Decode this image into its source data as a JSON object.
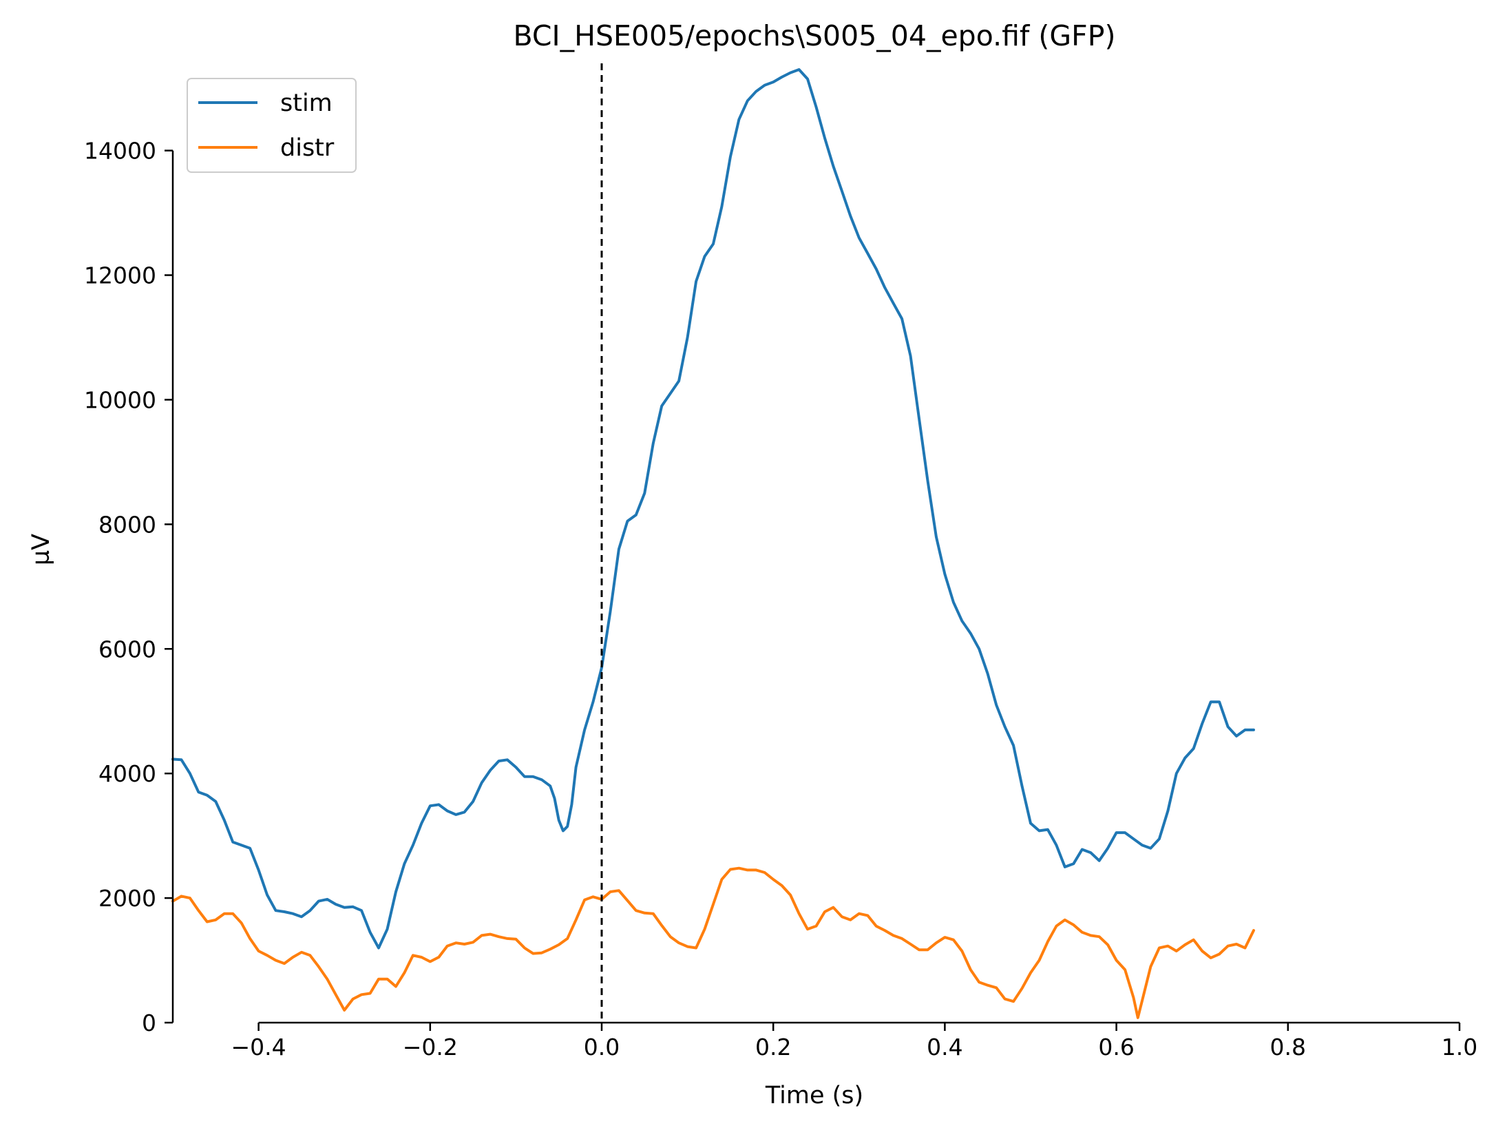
{
  "chart_data": {
    "type": "line",
    "title": "BCI_HSE005/epochs\\S005_04_epo.fif (GFP)",
    "xlabel": "Time (s)",
    "ylabel": "µV",
    "xlim": [
      -0.5,
      1.0
    ],
    "ylim": [
      0,
      15400
    ],
    "x_ticks": [
      -0.4,
      -0.2,
      0.0,
      0.2,
      0.4,
      0.6,
      0.8,
      1.0
    ],
    "x_tick_labels": [
      "−0.4",
      "−0.2",
      "0.0",
      "0.2",
      "0.4",
      "0.6",
      "0.8",
      "1.0"
    ],
    "y_ticks": [
      0,
      2000,
      4000,
      6000,
      8000,
      10000,
      12000,
      14000
    ],
    "y_tick_labels": [
      "0",
      "2000",
      "4000",
      "6000",
      "8000",
      "10000",
      "12000",
      "14000"
    ],
    "grid": false,
    "legend": "top-left",
    "event_marker": {
      "x": 0.0,
      "style": "dashed",
      "color": "#000000"
    },
    "series": [
      {
        "name": "stim",
        "color": "#1f77b4",
        "points": [
          [
            -0.5,
            4230
          ],
          [
            -0.49,
            4220
          ],
          [
            -0.48,
            4000
          ],
          [
            -0.47,
            3700
          ],
          [
            -0.46,
            3650
          ],
          [
            -0.45,
            3550
          ],
          [
            -0.44,
            3250
          ],
          [
            -0.43,
            2900
          ],
          [
            -0.42,
            2850
          ],
          [
            -0.41,
            2800
          ],
          [
            -0.4,
            2450
          ],
          [
            -0.39,
            2050
          ],
          [
            -0.38,
            1800
          ],
          [
            -0.37,
            1780
          ],
          [
            -0.36,
            1750
          ],
          [
            -0.35,
            1700
          ],
          [
            -0.34,
            1800
          ],
          [
            -0.33,
            1950
          ],
          [
            -0.32,
            1980
          ],
          [
            -0.31,
            1900
          ],
          [
            -0.3,
            1850
          ],
          [
            -0.29,
            1860
          ],
          [
            -0.28,
            1800
          ],
          [
            -0.27,
            1450
          ],
          [
            -0.26,
            1200
          ],
          [
            -0.25,
            1500
          ],
          [
            -0.24,
            2100
          ],
          [
            -0.23,
            2550
          ],
          [
            -0.22,
            2850
          ],
          [
            -0.21,
            3200
          ],
          [
            -0.2,
            3480
          ],
          [
            -0.19,
            3500
          ],
          [
            -0.18,
            3400
          ],
          [
            -0.17,
            3340
          ],
          [
            -0.16,
            3380
          ],
          [
            -0.15,
            3550
          ],
          [
            -0.14,
            3850
          ],
          [
            -0.13,
            4050
          ],
          [
            -0.12,
            4200
          ],
          [
            -0.11,
            4220
          ],
          [
            -0.1,
            4100
          ],
          [
            -0.09,
            3950
          ],
          [
            -0.08,
            3950
          ],
          [
            -0.07,
            3900
          ],
          [
            -0.06,
            3800
          ],
          [
            -0.055,
            3600
          ],
          [
            -0.05,
            3250
          ],
          [
            -0.045,
            3080
          ],
          [
            -0.04,
            3150
          ],
          [
            -0.035,
            3500
          ],
          [
            -0.03,
            4100
          ],
          [
            -0.02,
            4700
          ],
          [
            -0.01,
            5150
          ],
          [
            0.0,
            5700
          ],
          [
            0.01,
            6600
          ],
          [
            0.02,
            7600
          ],
          [
            0.03,
            8050
          ],
          [
            0.04,
            8150
          ],
          [
            0.05,
            8500
          ],
          [
            0.06,
            9300
          ],
          [
            0.07,
            9900
          ],
          [
            0.08,
            10100
          ],
          [
            0.09,
            10300
          ],
          [
            0.1,
            11000
          ],
          [
            0.11,
            11900
          ],
          [
            0.12,
            12300
          ],
          [
            0.13,
            12500
          ],
          [
            0.14,
            13100
          ],
          [
            0.15,
            13900
          ],
          [
            0.16,
            14500
          ],
          [
            0.17,
            14800
          ],
          [
            0.18,
            14950
          ],
          [
            0.19,
            15050
          ],
          [
            0.2,
            15100
          ],
          [
            0.21,
            15180
          ],
          [
            0.22,
            15250
          ],
          [
            0.23,
            15300
          ],
          [
            0.24,
            15150
          ],
          [
            0.25,
            14700
          ],
          [
            0.26,
            14200
          ],
          [
            0.27,
            13750
          ],
          [
            0.28,
            13350
          ],
          [
            0.29,
            12950
          ],
          [
            0.3,
            12600
          ],
          [
            0.31,
            12350
          ],
          [
            0.32,
            12100
          ],
          [
            0.33,
            11800
          ],
          [
            0.34,
            11550
          ],
          [
            0.35,
            11300
          ],
          [
            0.36,
            10700
          ],
          [
            0.37,
            9700
          ],
          [
            0.38,
            8700
          ],
          [
            0.39,
            7800
          ],
          [
            0.4,
            7200
          ],
          [
            0.41,
            6750
          ],
          [
            0.42,
            6450
          ],
          [
            0.43,
            6250
          ],
          [
            0.44,
            6000
          ],
          [
            0.45,
            5600
          ],
          [
            0.46,
            5100
          ],
          [
            0.47,
            4750
          ],
          [
            0.48,
            4450
          ],
          [
            0.49,
            3800
          ],
          [
            0.5,
            3200
          ],
          [
            0.51,
            3080
          ],
          [
            0.52,
            3100
          ],
          [
            0.53,
            2850
          ],
          [
            0.54,
            2500
          ],
          [
            0.55,
            2550
          ],
          [
            0.56,
            2780
          ],
          [
            0.57,
            2730
          ],
          [
            0.58,
            2600
          ],
          [
            0.59,
            2800
          ],
          [
            0.6,
            3050
          ],
          [
            0.61,
            3050
          ],
          [
            0.62,
            2950
          ],
          [
            0.63,
            2850
          ],
          [
            0.64,
            2800
          ],
          [
            0.65,
            2950
          ],
          [
            0.66,
            3400
          ],
          [
            0.67,
            4000
          ],
          [
            0.68,
            4250
          ],
          [
            0.69,
            4400
          ],
          [
            0.7,
            4800
          ],
          [
            0.71,
            5150
          ],
          [
            0.72,
            5150
          ],
          [
            0.73,
            4750
          ],
          [
            0.74,
            4600
          ],
          [
            0.75,
            4700
          ],
          [
            0.76,
            4700
          ]
        ]
      },
      {
        "name": "distr",
        "color": "#ff7f0e",
        "points": [
          [
            -0.5,
            1950
          ],
          [
            -0.49,
            2030
          ],
          [
            -0.48,
            2000
          ],
          [
            -0.47,
            1800
          ],
          [
            -0.46,
            1620
          ],
          [
            -0.45,
            1650
          ],
          [
            -0.44,
            1750
          ],
          [
            -0.43,
            1750
          ],
          [
            -0.42,
            1600
          ],
          [
            -0.41,
            1350
          ],
          [
            -0.4,
            1150
          ],
          [
            -0.39,
            1080
          ],
          [
            -0.38,
            1000
          ],
          [
            -0.37,
            950
          ],
          [
            -0.36,
            1050
          ],
          [
            -0.35,
            1130
          ],
          [
            -0.34,
            1080
          ],
          [
            -0.33,
            900
          ],
          [
            -0.32,
            700
          ],
          [
            -0.31,
            450
          ],
          [
            -0.3,
            200
          ],
          [
            -0.29,
            380
          ],
          [
            -0.28,
            450
          ],
          [
            -0.27,
            470
          ],
          [
            -0.26,
            700
          ],
          [
            -0.25,
            700
          ],
          [
            -0.24,
            580
          ],
          [
            -0.23,
            800
          ],
          [
            -0.22,
            1080
          ],
          [
            -0.21,
            1050
          ],
          [
            -0.2,
            980
          ],
          [
            -0.19,
            1050
          ],
          [
            -0.18,
            1230
          ],
          [
            -0.17,
            1280
          ],
          [
            -0.16,
            1260
          ],
          [
            -0.15,
            1290
          ],
          [
            -0.14,
            1400
          ],
          [
            -0.13,
            1420
          ],
          [
            -0.12,
            1380
          ],
          [
            -0.11,
            1350
          ],
          [
            -0.1,
            1340
          ],
          [
            -0.09,
            1200
          ],
          [
            -0.08,
            1110
          ],
          [
            -0.07,
            1120
          ],
          [
            -0.06,
            1180
          ],
          [
            -0.05,
            1250
          ],
          [
            -0.04,
            1350
          ],
          [
            -0.03,
            1650
          ],
          [
            -0.02,
            1970
          ],
          [
            -0.01,
            2020
          ],
          [
            0.0,
            1980
          ],
          [
            0.01,
            2100
          ],
          [
            0.02,
            2120
          ],
          [
            0.03,
            1960
          ],
          [
            0.04,
            1800
          ],
          [
            0.05,
            1760
          ],
          [
            0.06,
            1750
          ],
          [
            0.07,
            1560
          ],
          [
            0.08,
            1380
          ],
          [
            0.09,
            1280
          ],
          [
            0.1,
            1220
          ],
          [
            0.11,
            1200
          ],
          [
            0.12,
            1500
          ],
          [
            0.13,
            1900
          ],
          [
            0.14,
            2300
          ],
          [
            0.15,
            2460
          ],
          [
            0.16,
            2480
          ],
          [
            0.17,
            2450
          ],
          [
            0.18,
            2450
          ],
          [
            0.19,
            2410
          ],
          [
            0.2,
            2300
          ],
          [
            0.21,
            2200
          ],
          [
            0.22,
            2050
          ],
          [
            0.23,
            1750
          ],
          [
            0.24,
            1500
          ],
          [
            0.25,
            1550
          ],
          [
            0.26,
            1780
          ],
          [
            0.27,
            1850
          ],
          [
            0.28,
            1700
          ],
          [
            0.29,
            1650
          ],
          [
            0.3,
            1750
          ],
          [
            0.31,
            1720
          ],
          [
            0.32,
            1550
          ],
          [
            0.33,
            1480
          ],
          [
            0.34,
            1400
          ],
          [
            0.35,
            1350
          ],
          [
            0.36,
            1260
          ],
          [
            0.37,
            1170
          ],
          [
            0.38,
            1170
          ],
          [
            0.39,
            1280
          ],
          [
            0.4,
            1370
          ],
          [
            0.41,
            1330
          ],
          [
            0.42,
            1150
          ],
          [
            0.43,
            850
          ],
          [
            0.44,
            650
          ],
          [
            0.45,
            600
          ],
          [
            0.46,
            560
          ],
          [
            0.47,
            380
          ],
          [
            0.48,
            340
          ],
          [
            0.49,
            550
          ],
          [
            0.5,
            800
          ],
          [
            0.51,
            1000
          ],
          [
            0.52,
            1300
          ],
          [
            0.53,
            1550
          ],
          [
            0.54,
            1650
          ],
          [
            0.55,
            1570
          ],
          [
            0.56,
            1450
          ],
          [
            0.57,
            1400
          ],
          [
            0.58,
            1380
          ],
          [
            0.59,
            1250
          ],
          [
            0.6,
            1000
          ],
          [
            0.61,
            850
          ],
          [
            0.62,
            400
          ],
          [
            0.625,
            80
          ],
          [
            0.63,
            350
          ],
          [
            0.64,
            900
          ],
          [
            0.65,
            1200
          ],
          [
            0.66,
            1230
          ],
          [
            0.67,
            1150
          ],
          [
            0.68,
            1250
          ],
          [
            0.69,
            1330
          ],
          [
            0.7,
            1150
          ],
          [
            0.71,
            1040
          ],
          [
            0.72,
            1100
          ],
          [
            0.73,
            1230
          ],
          [
            0.74,
            1260
          ],
          [
            0.75,
            1200
          ],
          [
            0.76,
            1480
          ]
        ]
      }
    ]
  }
}
